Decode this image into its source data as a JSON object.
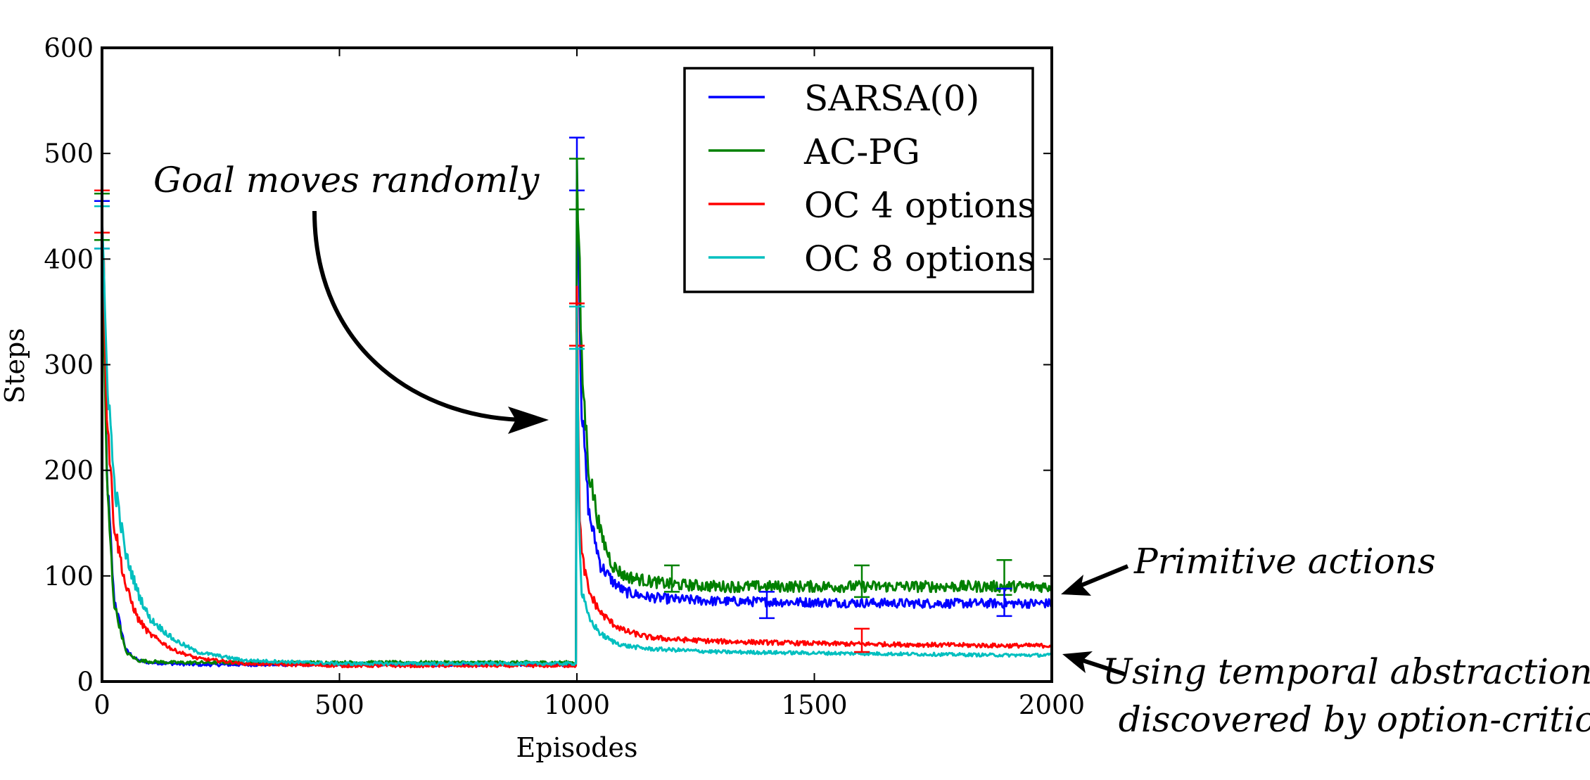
{
  "chart_data": {
    "type": "line",
    "title": "",
    "xlabel": "Episodes",
    "ylabel": "Steps",
    "xlim": [
      0,
      2000
    ],
    "ylim": [
      0,
      600
    ],
    "xticks": [
      0,
      500,
      1000,
      1500,
      2000
    ],
    "yticks": [
      0,
      100,
      200,
      300,
      400,
      500,
      600
    ],
    "xtick_labels": [
      "0",
      "500",
      "1000",
      "1500",
      "2000"
    ],
    "ytick_labels": [
      "0",
      "100",
      "200",
      "300",
      "400",
      "500",
      "600"
    ],
    "grid": false,
    "legend_position": "top-right",
    "x": [
      0,
      10,
      25,
      50,
      75,
      100,
      150,
      200,
      300,
      500,
      800,
      999,
      1000,
      1005,
      1010,
      1025,
      1050,
      1075,
      1100,
      1150,
      1200,
      1300,
      1500,
      1700,
      1900,
      2000
    ],
    "series": [
      {
        "name": "SARSA(0)",
        "color": "#0000ff",
        "values": [
          450,
          200,
          80,
          30,
          20,
          18,
          17,
          16,
          16,
          16,
          16,
          16,
          480,
          380,
          260,
          160,
          110,
          95,
          85,
          80,
          78,
          76,
          75,
          74,
          74,
          74
        ]
      },
      {
        "name": "AC-PG",
        "color": "#008000",
        "values": [
          440,
          190,
          75,
          28,
          20,
          19,
          18,
          18,
          18,
          18,
          18,
          18,
          480,
          400,
          300,
          200,
          140,
          110,
          100,
          95,
          92,
          90,
          90,
          90,
          90,
          90
        ]
      },
      {
        "name": "OC 4 options",
        "color": "#ff0000",
        "values": [
          460,
          260,
          150,
          90,
          60,
          45,
          30,
          22,
          17,
          15,
          15,
          15,
          355,
          170,
          120,
          85,
          65,
          55,
          48,
          42,
          40,
          38,
          36,
          35,
          34,
          34
        ]
      },
      {
        "name": "OC 8 options",
        "color": "#00bfbf",
        "values": [
          420,
          300,
          190,
          120,
          85,
          60,
          40,
          28,
          20,
          17,
          17,
          17,
          330,
          140,
          85,
          60,
          45,
          38,
          34,
          31,
          30,
          28,
          27,
          26,
          25,
          25
        ]
      }
    ],
    "error_bars": [
      {
        "series": 0,
        "x": 0,
        "low": 410,
        "high": 455
      },
      {
        "series": 1,
        "x": 0,
        "low": 418,
        "high": 462
      },
      {
        "series": 2,
        "x": 0,
        "low": 425,
        "high": 465
      },
      {
        "series": 3,
        "x": 0,
        "low": 410,
        "high": 450
      },
      {
        "series": 0,
        "x": 1000,
        "low": 465,
        "high": 515
      },
      {
        "series": 1,
        "x": 1000,
        "low": 447,
        "high": 495
      },
      {
        "series": 2,
        "x": 1000,
        "low": 318,
        "high": 358
      },
      {
        "series": 3,
        "x": 1000,
        "low": 315,
        "high": 355
      },
      {
        "series": 1,
        "x": 1200,
        "low": 85,
        "high": 110
      },
      {
        "series": 0,
        "x": 1400,
        "low": 60,
        "high": 85
      },
      {
        "series": 2,
        "x": 1600,
        "low": 28,
        "high": 50
      },
      {
        "series": 1,
        "x": 1600,
        "low": 80,
        "high": 110
      },
      {
        "series": 1,
        "x": 1900,
        "low": 82,
        "high": 115
      },
      {
        "series": 0,
        "x": 1900,
        "low": 62,
        "high": 88
      }
    ],
    "annotations": [
      {
        "text": "Goal moves randomly",
        "arrow_target": [
          1000,
          250
        ]
      },
      {
        "text": "Primitive actions",
        "arrow_target": [
          2000,
          85
        ]
      },
      {
        "text": "Using temporal abstractions",
        "line2": "discovered by option-critic",
        "arrow_target": [
          2000,
          25
        ]
      }
    ]
  }
}
